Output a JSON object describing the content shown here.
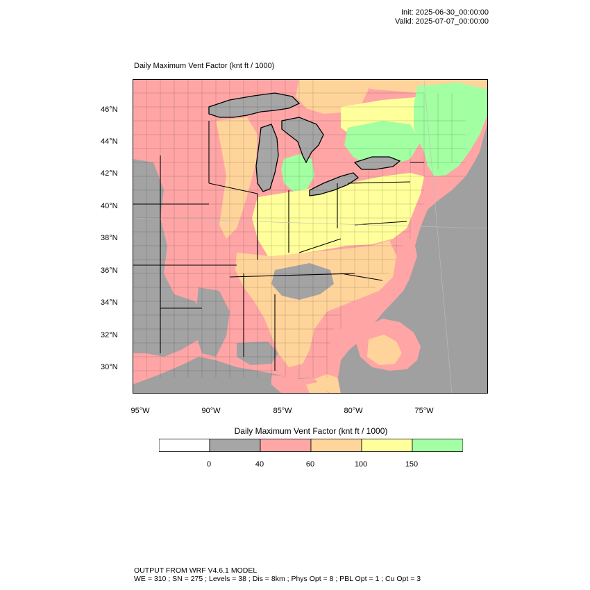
{
  "header": {
    "init": "Init: 2025-06-30_00:00:00",
    "valid": "Valid: 2025-07-07_00:00:00"
  },
  "map": {
    "title": "Daily Maximum Vent Factor   (knt ft / 1000)",
    "lat_labels": [
      "46°N",
      "44°N",
      "42°N",
      "40°N",
      "38°N",
      "36°N",
      "34°N",
      "32°N",
      "30°N"
    ],
    "lon_labels": [
      "95°W",
      "90°W",
      "85°W",
      "80°W",
      "75°W"
    ],
    "colors": {
      "water": "#a6a6a6",
      "lt40": "#a3a3a3",
      "40to60": "#ffa5a5",
      "60to100": "#ffd49a",
      "100to150": "#ffff9b",
      "gt150": "#a2ffa2",
      "outside": "#a0a0a0"
    }
  },
  "colorbar": {
    "title": "Daily Maximum Vent Factor  (knt ft / 1000)",
    "bins": [
      {
        "color": "#ffffff"
      },
      {
        "color": "#a6a6a6"
      },
      {
        "color": "#ffa6a6"
      },
      {
        "color": "#ffd59a"
      },
      {
        "color": "#ffff9c"
      },
      {
        "color": "#a3ffa3"
      }
    ],
    "ticks": [
      "0",
      "40",
      "60",
      "100",
      "150"
    ]
  },
  "footer": {
    "line1": "OUTPUT FROM WRF V4.6.1 MODEL",
    "line2": "WE = 310 ; SN = 275 ; Levels = 38 ; Dis = 8km ; Phys Opt = 8 ; PBL Opt = 1 ; Cu Opt = 3"
  }
}
